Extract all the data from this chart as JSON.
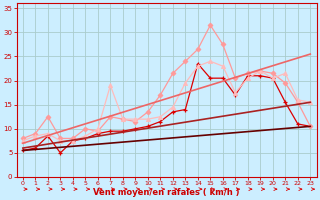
{
  "xlabel": "Vent moyen/en rafales ( km/h )",
  "bg_color": "#cceeff",
  "grid_color": "#aacccc",
  "xlim": [
    -0.5,
    23.5
  ],
  "ylim": [
    0,
    36
  ],
  "yticks": [
    0,
    5,
    10,
    15,
    20,
    25,
    30,
    35
  ],
  "xticks": [
    0,
    1,
    2,
    3,
    4,
    5,
    6,
    7,
    8,
    9,
    10,
    11,
    12,
    13,
    14,
    15,
    16,
    17,
    18,
    19,
    20,
    21,
    22,
    23
  ],
  "lines": [
    {
      "x": [
        0,
        1,
        2,
        3,
        4,
        5,
        6,
        7,
        8,
        9,
        10,
        11,
        12,
        13,
        14,
        15,
        16,
        17,
        18,
        19,
        20,
        21,
        22,
        23
      ],
      "y": [
        5.5,
        6.0,
        8.5,
        5.0,
        7.5,
        8.0,
        9.0,
        9.5,
        9.5,
        10.0,
        10.5,
        11.5,
        13.5,
        14.0,
        23.5,
        20.5,
        20.5,
        17.0,
        21.0,
        21.0,
        20.5,
        15.5,
        11.0,
        10.5
      ],
      "color": "#dd0000",
      "lw": 0.9,
      "marker": "+",
      "ms": 3,
      "mew": 0.9
    },
    {
      "x": [
        0,
        1,
        2,
        3,
        4,
        5,
        6,
        7,
        8,
        9,
        10,
        11,
        12,
        13,
        14,
        15,
        16,
        17,
        18,
        19,
        20,
        21,
        22,
        23
      ],
      "y": [
        8.0,
        9.0,
        12.5,
        8.0,
        8.0,
        10.0,
        9.5,
        12.5,
        12.0,
        11.5,
        13.5,
        17.0,
        21.5,
        24.0,
        26.5,
        31.5,
        27.5,
        20.5,
        21.5,
        22.0,
        21.5,
        19.5,
        15.5,
        10.5
      ],
      "color": "#ff9999",
      "lw": 0.9,
      "marker": "D",
      "ms": 2.5,
      "mew": 0.6
    },
    {
      "x": [
        0,
        1,
        2,
        3,
        4,
        5,
        6,
        7,
        8,
        9,
        10,
        11,
        12,
        13,
        14,
        15,
        16,
        17,
        18,
        19,
        20,
        21,
        22,
        23
      ],
      "y": [
        7.5,
        8.5,
        9.0,
        7.5,
        7.5,
        8.5,
        10.0,
        19.0,
        12.0,
        12.0,
        12.0,
        12.5,
        14.5,
        19.5,
        23.0,
        24.0,
        23.0,
        17.5,
        20.5,
        22.0,
        20.5,
        21.5,
        16.0,
        15.5
      ],
      "color": "#ffbbbb",
      "lw": 0.9,
      "marker": "^",
      "ms": 3,
      "mew": 0.6
    },
    {
      "x": [
        0,
        23
      ],
      "y": [
        5.5,
        10.5
      ],
      "color": "#660000",
      "lw": 1.2,
      "marker": null,
      "ms": 0,
      "mew": 0
    },
    {
      "x": [
        0,
        23
      ],
      "y": [
        6.0,
        15.5
      ],
      "color": "#aa2222",
      "lw": 1.2,
      "marker": null,
      "ms": 0,
      "mew": 0
    },
    {
      "x": [
        0,
        23
      ],
      "y": [
        7.0,
        25.5
      ],
      "color": "#ee6666",
      "lw": 1.2,
      "marker": null,
      "ms": 0,
      "mew": 0
    }
  ],
  "arrow_color": "#dd0000",
  "axis_color": "#cc0000",
  "tick_color": "#cc0000",
  "label_color": "#cc0000",
  "tick_fontsize": 4.5,
  "xlabel_fontsize": 6
}
